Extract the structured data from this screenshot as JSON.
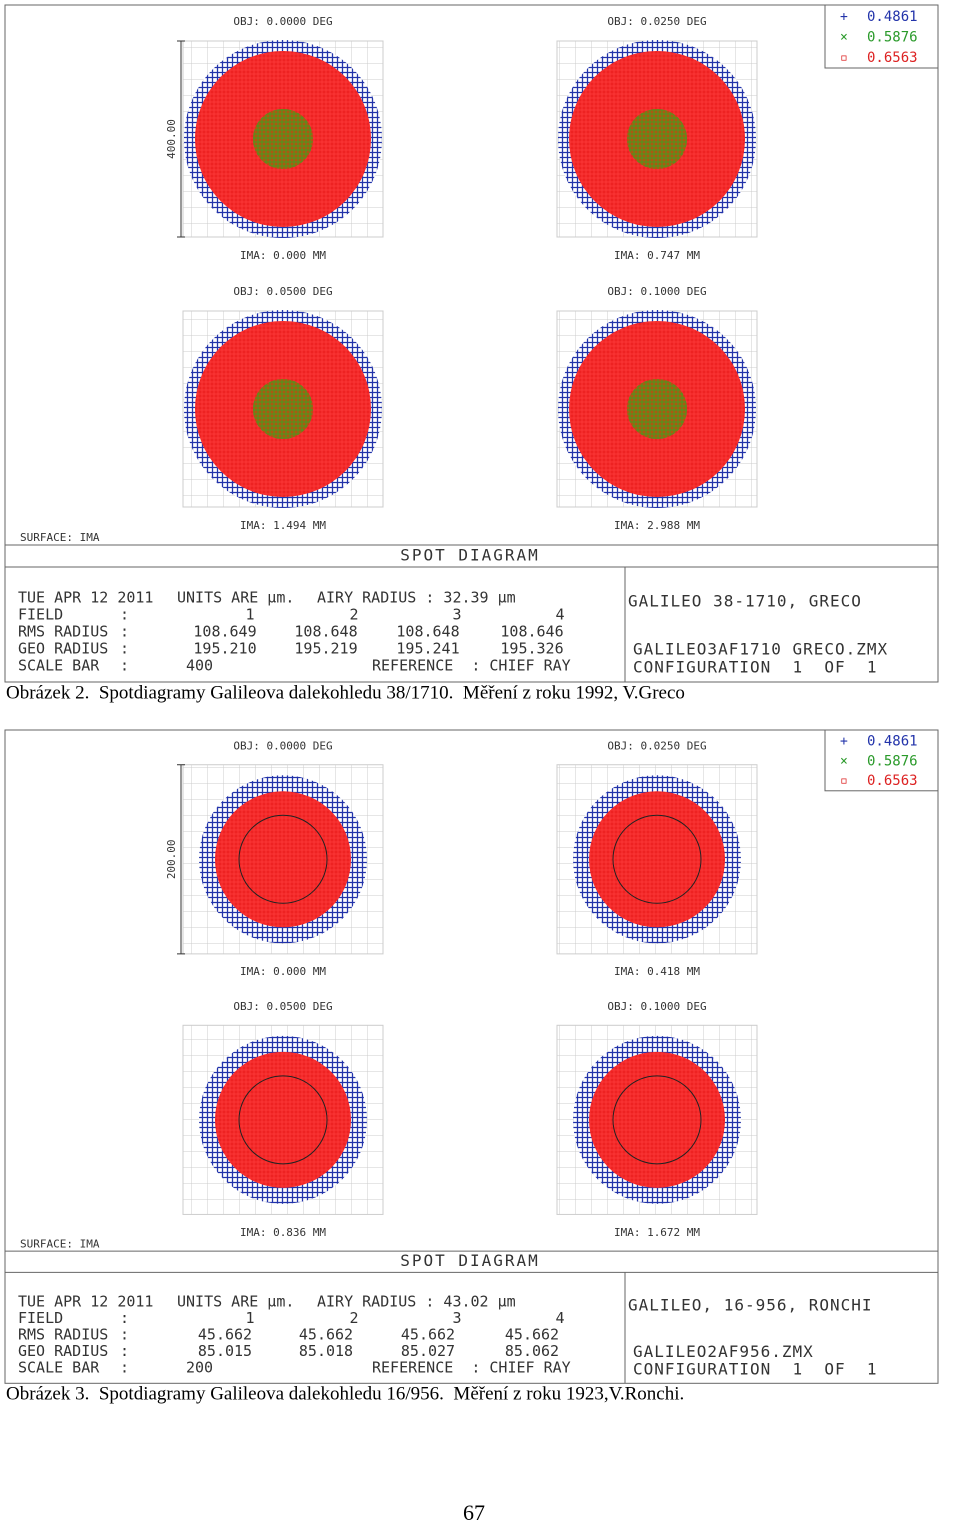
{
  "figures": [
    {
      "legend": [
        "0.4861",
        "0.5876",
        "0.6563"
      ],
      "panels": [
        {
          "obj": "OBJ: 0.0000 DEG",
          "ima": "IMA: 0.000 MM"
        },
        {
          "obj": "OBJ: 0.0250 DEG",
          "ima": "IMA: 0.747 MM"
        },
        {
          "obj": "OBJ: 0.0500 DEG",
          "ima": "IMA: 1.494 MM"
        },
        {
          "obj": "OBJ: 0.1000 DEG",
          "ima": "IMA: 2.988 MM"
        }
      ],
      "scale_label": "400.00",
      "surface": "SURFACE: IMA",
      "title": "SPOT DIAGRAM",
      "info": {
        "date": "TUE APR 12 2011",
        "units": "UNITS ARE µm.",
        "airy": "AIRY RADIUS : 32.39 µm",
        "field": {
          "label": "FIELD",
          "sep": ":",
          "values": [
            "1",
            "2",
            "3",
            "4"
          ]
        },
        "rms": {
          "label": "RMS RADIUS",
          "sep": ":",
          "values": [
            "108.649",
            "108.648",
            "108.648",
            "108.646"
          ]
        },
        "geo": {
          "label": "GEO RADIUS",
          "sep": ":",
          "values": [
            "195.210",
            "195.219",
            "195.241",
            "195.326"
          ]
        },
        "scale_bar": {
          "label": "SCALE BAR",
          "sep": ":",
          "value": "400"
        },
        "reference": "REFERENCE  : CHIEF RAY"
      },
      "box": {
        "lens": "GALILEO 38-1710, GRECO",
        "file": "GALILEO3AF1710 GRECO.ZMX",
        "config": "CONFIGURATION  1  OF  1"
      },
      "caption": "Obrázek 2.  Spotdiagramy Galileova dalekohledu 38/1710.  Měření z roku 1992, V.Greco"
    },
    {
      "legend": [
        "0.4861",
        "0.5876",
        "0.6563"
      ],
      "panels": [
        {
          "obj": "OBJ: 0.0000 DEG",
          "ima": "IMA: 0.000 MM"
        },
        {
          "obj": "OBJ: 0.0250 DEG",
          "ima": "IMA: 0.418 MM"
        },
        {
          "obj": "OBJ: 0.0500 DEG",
          "ima": "IMA: 0.836 MM"
        },
        {
          "obj": "OBJ: 0.1000 DEG",
          "ima": "IMA: 1.672 MM"
        }
      ],
      "scale_label": "200.00",
      "surface": "SURFACE: IMA",
      "title": "SPOT DIAGRAM",
      "info": {
        "date": "TUE APR 12 2011",
        "units": "UNITS ARE µm.",
        "airy": "AIRY RADIUS : 43.02 µm",
        "field": {
          "label": "FIELD",
          "sep": ":",
          "values": [
            "1",
            "2",
            "3",
            "4"
          ]
        },
        "rms": {
          "label": "RMS RADIUS",
          "sep": ":",
          "values": [
            "45.662",
            "45.662",
            "45.662",
            "45.662"
          ]
        },
        "geo": {
          "label": "GEO RADIUS",
          "sep": ":",
          "values": [
            "85.015",
            "85.018",
            "85.027",
            "85.062"
          ]
        },
        "scale_bar": {
          "label": "SCALE BAR",
          "sep": ":",
          "value": "200"
        },
        "reference": "REFERENCE  : CHIEF RAY"
      },
      "box": {
        "lens": "GALILEO, 16-956, RONCHI",
        "file": "GALILEO2AF956.ZMX",
        "config": "CONFIGURATION  1  OF  1"
      },
      "caption": "Obrázek 3.  Spotdiagramy Galileova dalekohledu 16/956.  Měření z roku 1923,V.Ronchi."
    }
  ],
  "page_number": "67"
}
